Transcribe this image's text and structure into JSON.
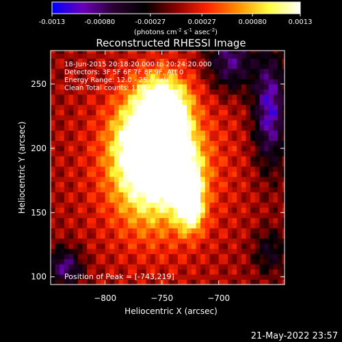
{
  "colorbar": {
    "ticks": [
      "-0.0013",
      "-0.00080",
      "-0.00027",
      "0.00027",
      "0.00080",
      "0.0013"
    ],
    "tick_values": [
      -0.0013,
      -0.0008,
      -0.00027,
      0.00027,
      0.0008,
      0.0013
    ],
    "range": [
      -0.0013,
      0.0013
    ],
    "units_prefix": "(photons cm",
    "units_exp1": "-2",
    "units_mid1": " s",
    "units_exp2": "-1",
    "units_mid2": " asec",
    "units_exp3": "-2",
    "units_suffix": ")",
    "colors": [
      "#0000ff",
      "#6a00b8",
      "#2a0030",
      "#000000",
      "#8a0000",
      "#ff2400",
      "#ff9000",
      "#ffff40",
      "#ffffff"
    ]
  },
  "chart_data": {
    "type": "heatmap",
    "title": "Reconstructed RHESSI Image",
    "xlabel": "Heliocentric X (arcsec)",
    "ylabel": "Heliocentric Y (arcsec)",
    "xlim": [
      -848,
      -642
    ],
    "ylim": [
      94,
      276
    ],
    "xticks": [
      -800,
      -750,
      -700
    ],
    "xtick_labels": [
      "−800",
      "−750",
      "−700"
    ],
    "yticks": [
      100,
      150,
      200,
      250
    ],
    "ytick_labels": [
      "100",
      "150",
      "200",
      "250"
    ],
    "info_lines": [
      "18-Jun-2015 20:18:20.000 to 20:24:20.000",
      "Detectors: 3F 5F 6F 7F 8F 9F, Att 0",
      "Energy Range: 12.0 - 25.0 keV",
      "Clean     Total counts: 1.09E+04"
    ],
    "peak_text": "Position of Peak = [-743,219]",
    "peak": [
      -743,
      219
    ],
    "grid": false,
    "sources": [
      {
        "x": -745,
        "y": 220,
        "peak": 0.0013,
        "sx": 12,
        "sy": 14
      },
      {
        "x": -765,
        "y": 205,
        "peak": 0.0012,
        "sx": 18,
        "sy": 22
      },
      {
        "x": -735,
        "y": 190,
        "peak": 0.0009,
        "sx": 14,
        "sy": 16
      },
      {
        "x": -730,
        "y": 170,
        "peak": 0.00095,
        "sx": 10,
        "sy": 12
      },
      {
        "x": -725,
        "y": 152,
        "peak": 0.0011,
        "sx": 8,
        "sy": 12
      },
      {
        "x": -760,
        "y": 180,
        "peak": 0.0009,
        "sx": 22,
        "sy": 28
      },
      {
        "x": -750,
        "y": 240,
        "peak": 0.00085,
        "sx": 16,
        "sy": 14
      },
      {
        "x": -690,
        "y": 268,
        "peak": -0.0009,
        "sx": 14,
        "sy": 16
      },
      {
        "x": -655,
        "y": 230,
        "peak": -0.0011,
        "sx": 10,
        "sy": 30
      },
      {
        "x": -835,
        "y": 108,
        "peak": -0.0009,
        "sx": 10,
        "sy": 10
      },
      {
        "x": -655,
        "y": 120,
        "peak": -0.0005,
        "sx": 10,
        "sy": 12
      }
    ],
    "background": 0.00045
  },
  "footer": {
    "timestamp": "21-May-2022 23:57"
  }
}
